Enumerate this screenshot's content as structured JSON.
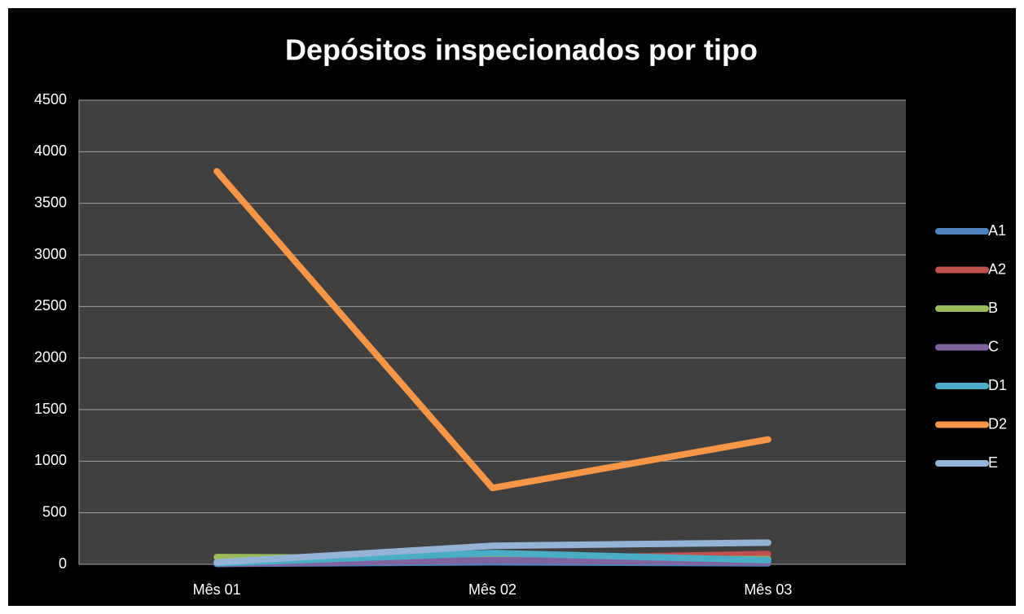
{
  "chart_data": {
    "type": "line",
    "title": "Depósitos inspecionados por tipo",
    "categories": [
      "Mês 01",
      "Mês 02",
      "Mês 03"
    ],
    "series": [
      {
        "name": "A1",
        "color": "#4f81bd",
        "values": [
          5,
          20,
          10
        ]
      },
      {
        "name": "A2",
        "color": "#c0504d",
        "values": [
          10,
          50,
          100
        ]
      },
      {
        "name": "B",
        "color": "#9bbb59",
        "values": [
          70,
          60,
          50
        ]
      },
      {
        "name": "C",
        "color": "#8064a2",
        "values": [
          5,
          40,
          20
        ]
      },
      {
        "name": "D1",
        "color": "#4bacc6",
        "values": [
          10,
          110,
          40
        ]
      },
      {
        "name": "D2",
        "color": "#f79646",
        "values": [
          3810,
          740,
          1210
        ]
      },
      {
        "name": "E",
        "color": "#95b3d7",
        "values": [
          20,
          180,
          210
        ]
      }
    ],
    "ylim": [
      0,
      4500
    ],
    "yticks": [
      0,
      500,
      1000,
      1500,
      2000,
      2500,
      3000,
      3500,
      4000,
      4500
    ],
    "grid": true,
    "legend": "right"
  }
}
